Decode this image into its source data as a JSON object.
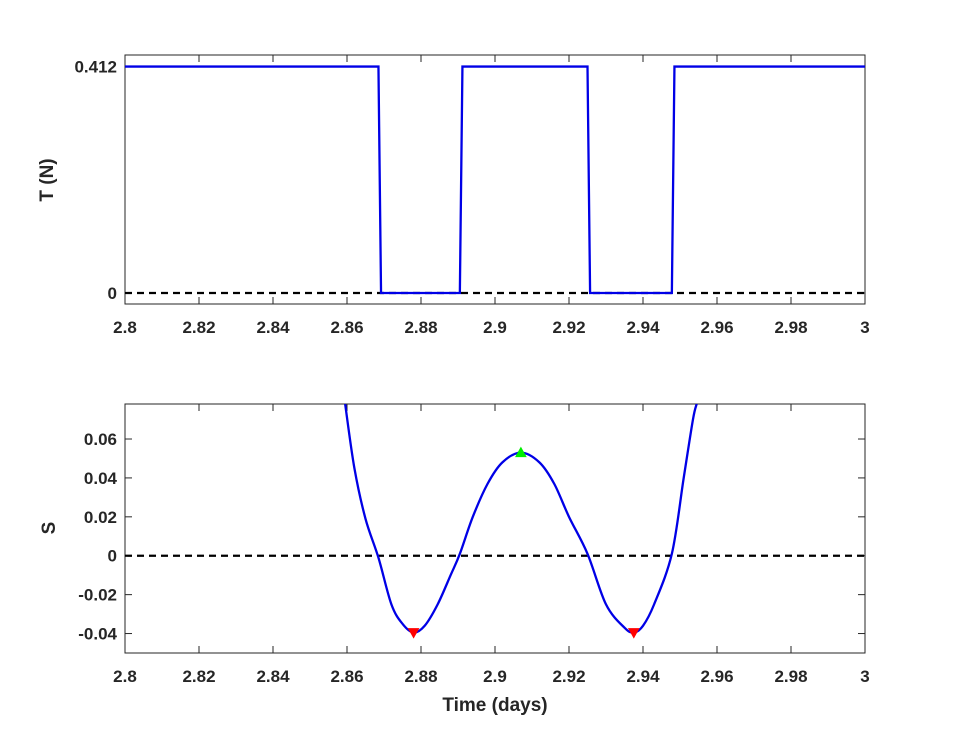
{
  "chart_data": [
    {
      "type": "line",
      "ylabel": "T (N)",
      "xlabel": "",
      "xlim": [
        2.8,
        3.0
      ],
      "ylim": [
        -0.02,
        0.433
      ],
      "xticks": [
        "2.8",
        "2.82",
        "2.84",
        "2.86",
        "2.88",
        "2.9",
        "2.92",
        "2.94",
        "2.96",
        "2.98",
        "3"
      ],
      "yticks": [
        {
          "value": 0,
          "label": "0"
        },
        {
          "value": 0.412,
          "label": "0.412"
        }
      ],
      "series": [
        {
          "color": "#0000e6",
          "style": "solid",
          "x": [
            2.8,
            2.8685,
            2.8692,
            2.8905,
            2.8912,
            2.925,
            2.9257,
            2.9478,
            2.9485,
            3.0
          ],
          "y": [
            0.412,
            0.412,
            0,
            0,
            0.412,
            0.412,
            0,
            0,
            0.412,
            0.412
          ]
        },
        {
          "color": "#000000",
          "style": "dashed",
          "x": [
            2.8,
            3.0
          ],
          "y": [
            0,
            0
          ]
        }
      ]
    },
    {
      "type": "line",
      "ylabel": "S",
      "xlabel": "Time (days)",
      "xlim": [
        2.8,
        3.0
      ],
      "ylim": [
        -0.05,
        0.078
      ],
      "xticks": [
        "2.8",
        "2.82",
        "2.84",
        "2.86",
        "2.88",
        "2.9",
        "2.92",
        "2.94",
        "2.96",
        "2.98",
        "3"
      ],
      "yticks": [
        {
          "value": -0.04,
          "label": "-0.04"
        },
        {
          "value": -0.02,
          "label": "-0.02"
        },
        {
          "value": 0,
          "label": "0"
        },
        {
          "value": 0.02,
          "label": "0.02"
        },
        {
          "value": 0.04,
          "label": "0.04"
        },
        {
          "value": 0.06,
          "label": "0.06"
        }
      ],
      "series": [
        {
          "color": "#0000e6",
          "style": "solid",
          "x": [
            2.8595,
            2.862,
            2.865,
            2.8685,
            2.872,
            2.875,
            2.878,
            2.881,
            2.8845,
            2.888,
            2.8905,
            2.894,
            2.898,
            2.902,
            2.907,
            2.912,
            2.916,
            2.92,
            2.925,
            2.93,
            2.935,
            2.9375,
            2.94,
            2.943,
            2.9478,
            2.951,
            2.9535,
            2.9545
          ],
          "y": [
            0.078,
            0.045,
            0.019,
            -0.001,
            -0.025,
            -0.035,
            -0.0395,
            -0.036,
            -0.025,
            -0.01,
            0.001,
            0.02,
            0.037,
            0.048,
            0.053,
            0.048,
            0.037,
            0.02,
            0.001,
            -0.025,
            -0.037,
            -0.0395,
            -0.036,
            -0.025,
            0.001,
            0.04,
            0.07,
            0.078
          ]
        },
        {
          "color": "#000000",
          "style": "dashed",
          "x": [
            2.8,
            3.0
          ],
          "y": [
            0,
            0
          ]
        }
      ],
      "markers": [
        {
          "x": 2.878,
          "y": -0.0395,
          "shape": "triangle-down",
          "color": "#ff0000"
        },
        {
          "x": 2.907,
          "y": 0.053,
          "shape": "triangle-up",
          "color": "#00ee00"
        },
        {
          "x": 2.9375,
          "y": -0.0395,
          "shape": "triangle-down",
          "color": "#ff0000"
        }
      ]
    }
  ]
}
